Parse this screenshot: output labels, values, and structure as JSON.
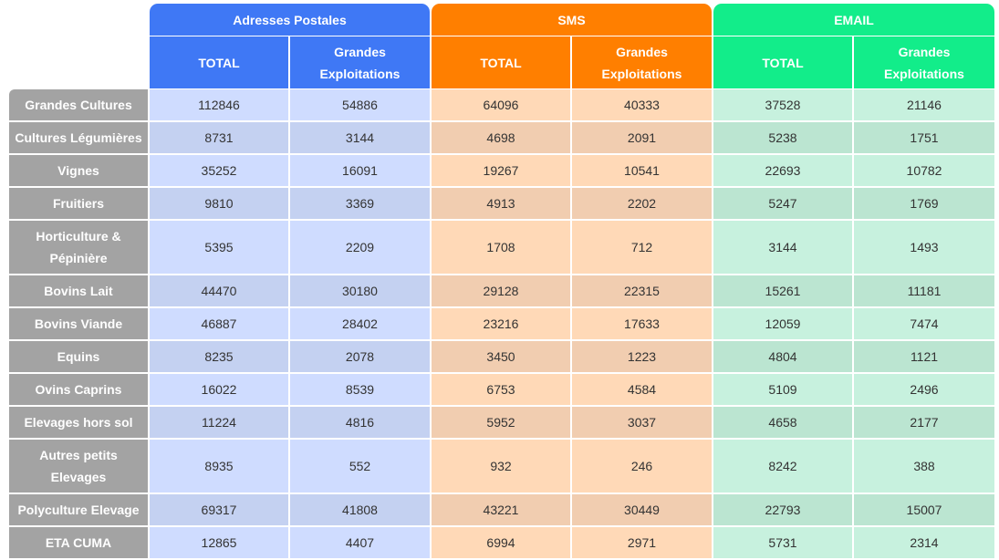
{
  "groups": [
    {
      "label": "Adresses Postales",
      "color": "#3f78f5"
    },
    {
      "label": "SMS",
      "color": "#ff7f00"
    },
    {
      "label": "EMAIL",
      "color": "#12ed8a"
    }
  ],
  "subheaders": {
    "total": "TOTAL",
    "grandes_line1": "Grandes",
    "grandes_line2": "Exploitations"
  },
  "rows": [
    {
      "label": [
        "Grandes Cultures"
      ],
      "values": [
        "112846",
        "54886",
        "64096",
        "40333",
        "37528",
        "21146"
      ]
    },
    {
      "label": [
        "Cultures Légumières"
      ],
      "values": [
        "8731",
        "3144",
        "4698",
        "2091",
        "5238",
        "1751"
      ]
    },
    {
      "label": [
        "Vignes"
      ],
      "values": [
        "35252",
        "16091",
        "19267",
        "10541",
        "22693",
        "10782"
      ]
    },
    {
      "label": [
        "Fruitiers"
      ],
      "values": [
        "9810",
        "3369",
        "4913",
        "2202",
        "5247",
        "1769"
      ]
    },
    {
      "label": [
        "Horticulture &",
        "Pépinière"
      ],
      "values": [
        "5395",
        "2209",
        "1708",
        "712",
        "3144",
        "1493"
      ]
    },
    {
      "label": [
        "Bovins Lait"
      ],
      "values": [
        "44470",
        "30180",
        "29128",
        "22315",
        "15261",
        "11181"
      ]
    },
    {
      "label": [
        "Bovins Viande"
      ],
      "values": [
        "46887",
        "28402",
        "23216",
        "17633",
        "12059",
        "7474"
      ]
    },
    {
      "label": [
        "Equins"
      ],
      "values": [
        "8235",
        "2078",
        "3450",
        "1223",
        "4804",
        "1121"
      ]
    },
    {
      "label": [
        "Ovins Caprins"
      ],
      "values": [
        "16022",
        "8539",
        "6753",
        "4584",
        "5109",
        "2496"
      ]
    },
    {
      "label": [
        "Elevages hors sol"
      ],
      "values": [
        "11224",
        "4816",
        "5952",
        "3037",
        "4658",
        "2177"
      ]
    },
    {
      "label": [
        "Autres petits",
        "Elevages"
      ],
      "values": [
        "8935",
        "552",
        "932",
        "246",
        "8242",
        "388"
      ]
    },
    {
      "label": [
        "Polyculture Elevage"
      ],
      "values": [
        "69317",
        "41808",
        "43221",
        "30449",
        "22793",
        "15007"
      ]
    },
    {
      "label": [
        "ETA CUMA"
      ],
      "values": [
        "12865",
        "4407",
        "6994",
        "2971",
        "5731",
        "2314"
      ]
    }
  ]
}
